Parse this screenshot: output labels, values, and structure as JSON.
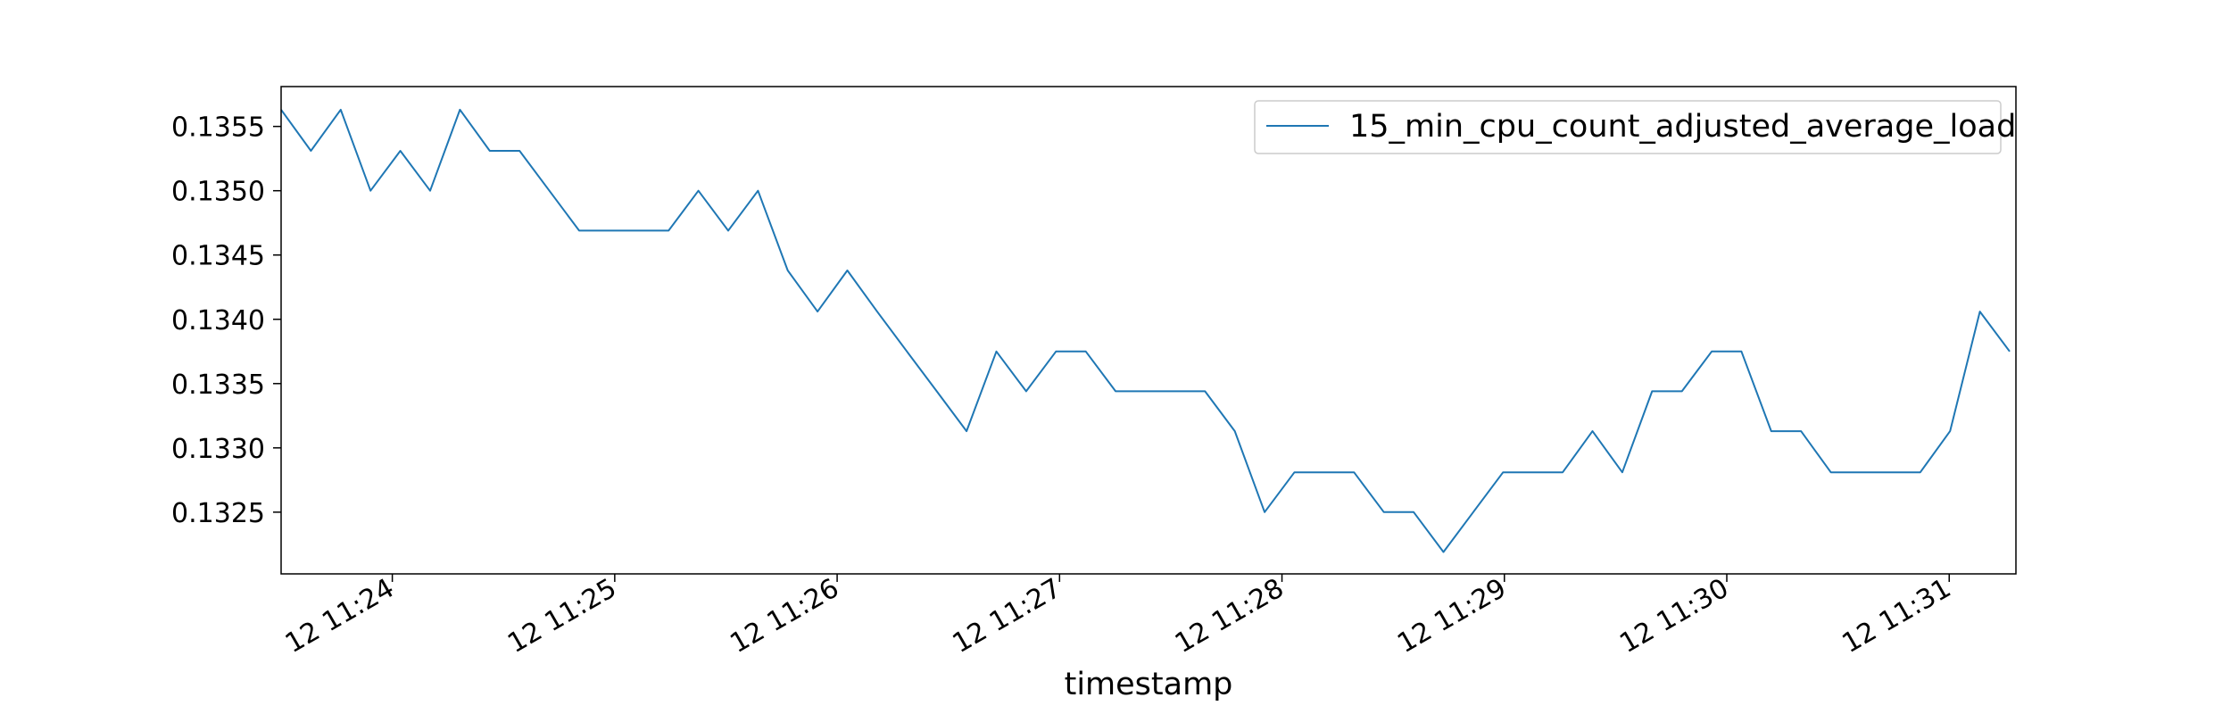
{
  "chart_data": {
    "type": "line",
    "title": "",
    "xlabel": "timestamp",
    "ylabel": "",
    "x_tick_labels": [
      "12 11:24",
      "12 11:25",
      "12 11:26",
      "12 11:27",
      "12 11:28",
      "12 11:29",
      "12 11:30",
      "12 11:31"
    ],
    "x_tick_minutes": [
      24,
      25,
      26,
      27,
      28,
      29,
      30,
      31
    ],
    "xlim_minutes": [
      23.5,
      31.3
    ],
    "y_ticks": [
      0.1325,
      0.133,
      0.1335,
      0.134,
      0.1345,
      0.135,
      0.1355
    ],
    "y_tick_labels": [
      "0.1325",
      "0.1330",
      "0.1335",
      "0.1340",
      "0.1345",
      "0.1350",
      "0.1355"
    ],
    "ylim": [
      0.13202,
      0.13581
    ],
    "grid": false,
    "legend_position": "top-right",
    "series": [
      {
        "name": "15_min_cpu_count_adjusted_average_load",
        "color": "#1f77b4",
        "x_minutes": [
          23.5,
          23.634,
          23.768,
          23.902,
          24.036,
          24.17,
          24.304,
          24.438,
          24.572,
          24.706,
          24.84,
          24.974,
          25.108,
          25.242,
          25.376,
          25.51,
          25.644,
          25.778,
          25.912,
          26.046,
          26.18,
          26.314,
          26.448,
          26.582,
          26.716,
          26.85,
          26.984,
          27.118,
          27.252,
          27.386,
          27.52,
          27.654,
          27.788,
          27.922,
          28.056,
          28.19,
          28.324,
          28.458,
          28.592,
          28.726,
          28.86,
          28.994,
          29.128,
          29.262,
          29.396,
          29.53,
          29.664,
          29.798,
          29.932,
          30.066,
          30.2,
          30.334,
          30.468,
          30.602,
          30.736,
          30.87,
          31.004,
          31.138,
          31.272
        ],
        "y": [
          0.13563,
          0.13531,
          0.13563,
          0.135,
          0.13531,
          0.135,
          0.13563,
          0.13531,
          0.13531,
          0.135,
          0.13469,
          0.13469,
          0.13469,
          0.13469,
          0.135,
          0.13469,
          0.135,
          0.13438,
          0.13406,
          0.13438,
          0.13406,
          0.13375,
          0.13344,
          0.13313,
          0.13375,
          0.13344,
          0.13375,
          0.13375,
          0.13344,
          0.13344,
          0.13344,
          0.13344,
          0.13313,
          0.1325,
          0.13281,
          0.13281,
          0.13281,
          0.1325,
          0.1325,
          0.13219,
          0.1325,
          0.13281,
          0.13281,
          0.13281,
          0.13313,
          0.13281,
          0.13344,
          0.13344,
          0.13375,
          0.13375,
          0.13313,
          0.13313,
          0.13281,
          0.13281,
          0.13281,
          0.13281,
          0.13313,
          0.13406,
          0.13375
        ]
      }
    ]
  }
}
